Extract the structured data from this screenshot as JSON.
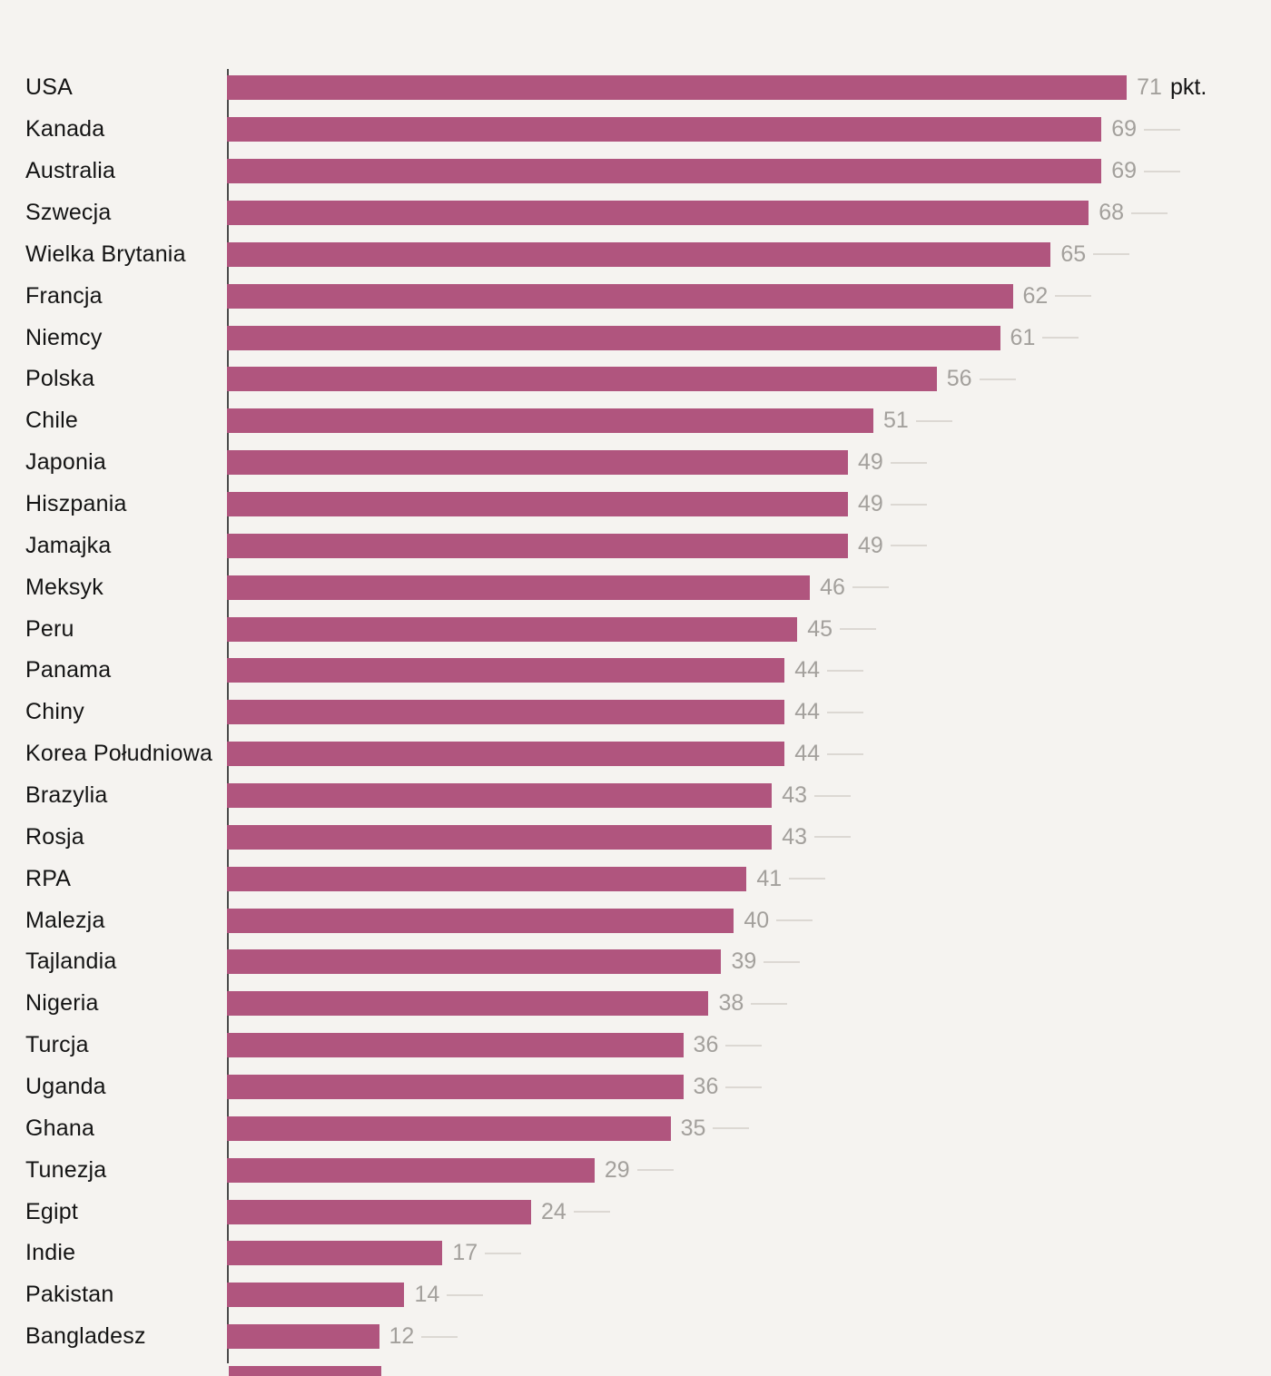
{
  "chart_data": {
    "type": "bar",
    "orientation": "horizontal",
    "title": "",
    "xlabel": "",
    "ylabel": "",
    "unit_suffix": "pkt.",
    "xlim": [
      0,
      82
    ],
    "grid": false,
    "legend": "none",
    "categories": [
      "USA",
      "Kanada",
      "Australia",
      "Szwecja",
      "Wielka Brytania",
      "Francja",
      "Niemcy",
      "Polska",
      "Chile",
      "Japonia",
      "Hiszpania",
      "Jamajka",
      "Meksyk",
      "Peru",
      "Panama",
      "Chiny",
      "Korea Południowa",
      "Brazylia",
      "Rosja",
      "RPA",
      "Malezja",
      "Tajlandia",
      "Nigeria",
      "Turcja",
      "Uganda",
      "Ghana",
      "Tunezja",
      "Egipt",
      "Indie",
      "Pakistan",
      "Bangladesz"
    ],
    "values": [
      71,
      69,
      69,
      68,
      65,
      62,
      61,
      56,
      51,
      49,
      49,
      49,
      46,
      45,
      44,
      44,
      44,
      43,
      43,
      41,
      40,
      39,
      38,
      36,
      36,
      35,
      29,
      24,
      17,
      14,
      12
    ],
    "cutoff_bar_value": 12,
    "colors": {
      "bar": "#b0557e",
      "background": "#f5f3f0",
      "value_label": "#a3a09c",
      "category_label": "#141414",
      "axis_line": "#4a4a4a",
      "tick_line": "#dcd8d3"
    }
  }
}
